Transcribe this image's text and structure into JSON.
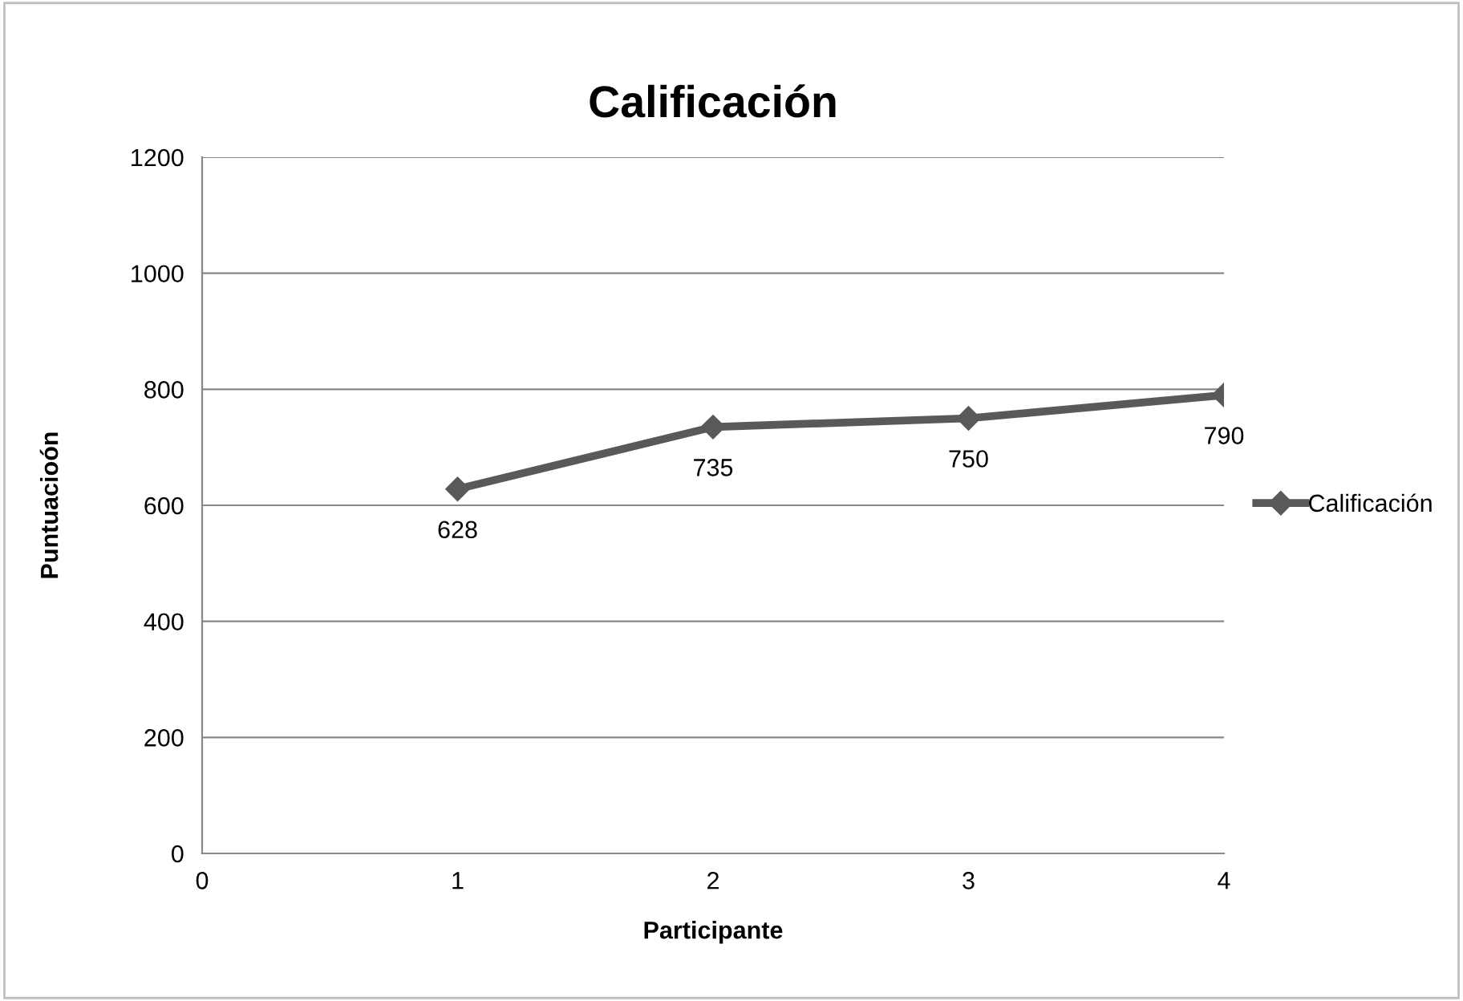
{
  "chart_data": {
    "type": "line",
    "title": "Calificación",
    "xlabel": "Participante",
    "ylabel": "Puntuacioón",
    "x": [
      1,
      2,
      3,
      4
    ],
    "series": [
      {
        "name": "Calificación",
        "color": "#595959",
        "values": [
          628,
          735,
          750,
          790
        ]
      }
    ],
    "xlim": [
      0,
      4
    ],
    "xticks": [
      0,
      1,
      2,
      3,
      4
    ],
    "ylim": [
      0,
      1200
    ],
    "yticks": [
      0,
      200,
      400,
      600,
      800,
      1000,
      1200
    ],
    "grid": "y",
    "legend": "right",
    "marker": "diamond",
    "line_style": "solid",
    "data_labels": true
  }
}
